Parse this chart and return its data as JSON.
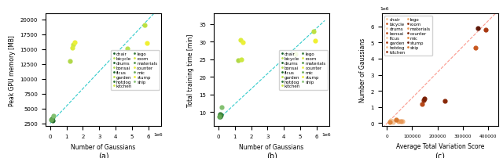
{
  "scenes": {
    "indoor": [
      "chair",
      "drums",
      "ficus",
      "hotdog",
      "lego",
      "materials",
      "mic",
      "ship"
    ],
    "outdoor": [
      "bicycle",
      "bonsai",
      "garden",
      "kitchen",
      "room",
      "counter",
      "stump"
    ]
  },
  "num_gaussians": {
    "chair": 100000,
    "drums": 150000,
    "ficus": 80000,
    "hotdog": 120000,
    "lego": 90000,
    "materials": 110000,
    "mic": 70000,
    "ship": 200000,
    "bicycle": 4700000,
    "bonsai": 1200000,
    "garden": 5800000,
    "kitchen": 1400000,
    "room": 1350000,
    "counter": 1500000,
    "stump": 5900000
  },
  "peak_gpu_memory": {
    "chair": 3200,
    "drums": 3000,
    "ficus": 3100,
    "hotdog": 3300,
    "lego": 3100,
    "materials": 3200,
    "mic": 3100,
    "ship": 3800,
    "bicycle": 15100,
    "bonsai": 13000,
    "garden": 19000,
    "kitchen": 15800,
    "room": 15300,
    "counter": 16100,
    "stump": 16000
  },
  "training_time": {
    "chair": 9.0,
    "drums": 9.2,
    "ficus": 8.8,
    "hotdog": 9.5,
    "lego": 9.0,
    "materials": 9.3,
    "mic": 8.7,
    "ship": 11.5,
    "bicycle": 26.5,
    "bonsai": 24.8,
    "garden": 33.0,
    "kitchen": 25.0,
    "room": 30.5,
    "counter": 29.8,
    "stump": 30.3
  },
  "avg_tv_score": {
    "chair": 20000,
    "drums": 15000,
    "ficus": 25000,
    "hotdog": 60000,
    "lego": 45000,
    "materials": 55000,
    "mic": 10000,
    "ship": 35000,
    "bicycle": 350000,
    "bonsai": 140000,
    "garden": 390000,
    "kitchen": 145000,
    "room": 230000,
    "counter": 150000,
    "stump": 360000
  },
  "indoor_colors": [
    "#0d5c22",
    "#155e25",
    "#1a6828",
    "#257030",
    "#347a38",
    "#4a9040",
    "#65a855",
    "#82c070"
  ],
  "outdoor_colors": [
    "#b8e050",
    "#b0d848",
    "#bce040",
    "#cce840",
    "#dcec3c",
    "#ecf038",
    "#f0f030"
  ],
  "indoor_orange": [
    "#f5c8a0",
    "#f5c8a0",
    "#f5c8a0",
    "#f0b888",
    "#eeaa70",
    "#e89858",
    "#e08840",
    "#d87830"
  ],
  "outdoor_orange": [
    "#c85820",
    "#b84818",
    "#a83810",
    "#903010",
    "#882808",
    "#782005",
    "#601808"
  ],
  "subplot_labels": [
    "(a)",
    "(b)",
    "(c)"
  ],
  "xlabel_a": "Number of Gaussians",
  "xlabel_b": "Number of Gaussians",
  "xlabel_c": "Average Total Variation Score",
  "ylabel_a": "Peak GPU memory [MB]",
  "ylabel_b": "Total training time [min]",
  "ylabel_c": "Number of Gaussians"
}
